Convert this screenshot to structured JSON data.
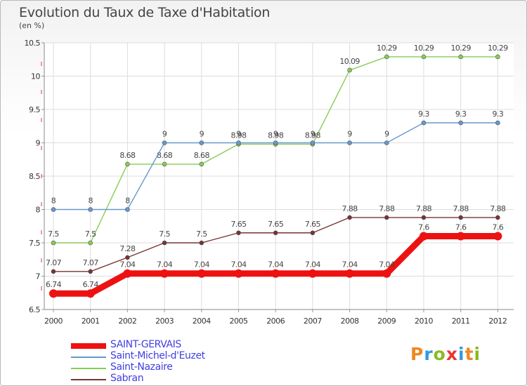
{
  "chart_data": {
    "type": "line",
    "title": "Evolution du Taux de Taxe d'Habitation",
    "subtitle": "(en %)",
    "categories": [
      "2000",
      "2001",
      "2002",
      "2003",
      "2004",
      "2005",
      "2006",
      "2007",
      "2008",
      "2009",
      "2010",
      "2011",
      "2012"
    ],
    "ylim": [
      6.5,
      10.5
    ],
    "yticks": [
      "6.5",
      "7",
      "7.5",
      "8",
      "8.5",
      "9",
      "9.5",
      "10",
      "10.5"
    ],
    "grid": true,
    "legend_position": "bottom-left",
    "series": [
      {
        "name": "SAINT-GERVAIS",
        "color": "#ee1111",
        "values": [
          6.74,
          6.74,
          7.04,
          7.04,
          7.04,
          7.04,
          7.04,
          7.04,
          7.04,
          7.04,
          7.6,
          7.6,
          7.6
        ],
        "labels": [
          "6.74",
          "6.74",
          "7.04",
          "7.04",
          "7.04",
          "7.04",
          "7.04",
          "7.04",
          "7.04",
          "7.04",
          "7.6",
          "7.6",
          "7.6"
        ]
      },
      {
        "name": "Saint-Michel-d'Euzet",
        "color": "#6699cc",
        "values": [
          8,
          8,
          8,
          9,
          9,
          9,
          9,
          9,
          9,
          9,
          9.3,
          9.3,
          9.3
        ],
        "labels": [
          "8",
          "8",
          "8",
          "9",
          "9",
          "9",
          "9",
          "9",
          "9",
          "9",
          "9.3",
          "9.3",
          "9.3"
        ]
      },
      {
        "name": "Saint-Nazaire",
        "color": "#88cc55",
        "values": [
          7.5,
          7.5,
          8.68,
          8.68,
          8.68,
          8.98,
          8.98,
          8.98,
          10.09,
          10.29,
          10.29,
          10.29,
          10.29
        ],
        "labels": [
          "7.5",
          "7.5",
          "8.68",
          "8.68",
          "8.68",
          "8.98",
          "8.98",
          "8.98",
          "10.09",
          "10.29",
          "10.29",
          "10.29",
          "10.29"
        ]
      },
      {
        "name": "Sabran",
        "color": "#773333",
        "values": [
          7.07,
          7.07,
          7.28,
          7.5,
          7.5,
          7.65,
          7.65,
          7.65,
          7.88,
          7.88,
          7.88,
          7.88,
          7.88
        ],
        "labels": [
          "7.07",
          "7.07",
          "7.28",
          "7.5",
          "7.5",
          "7.65",
          "7.65",
          "7.65",
          "7.88",
          "7.88",
          "7.88",
          "7.88",
          "7.88"
        ]
      }
    ]
  },
  "logo": {
    "text": "Proxiti",
    "letter_colors": [
      "#ee8822",
      "#3399dd",
      "#88bb22",
      "#ee3333",
      "#3399dd",
      "#ee8822",
      "#88bb22"
    ]
  }
}
